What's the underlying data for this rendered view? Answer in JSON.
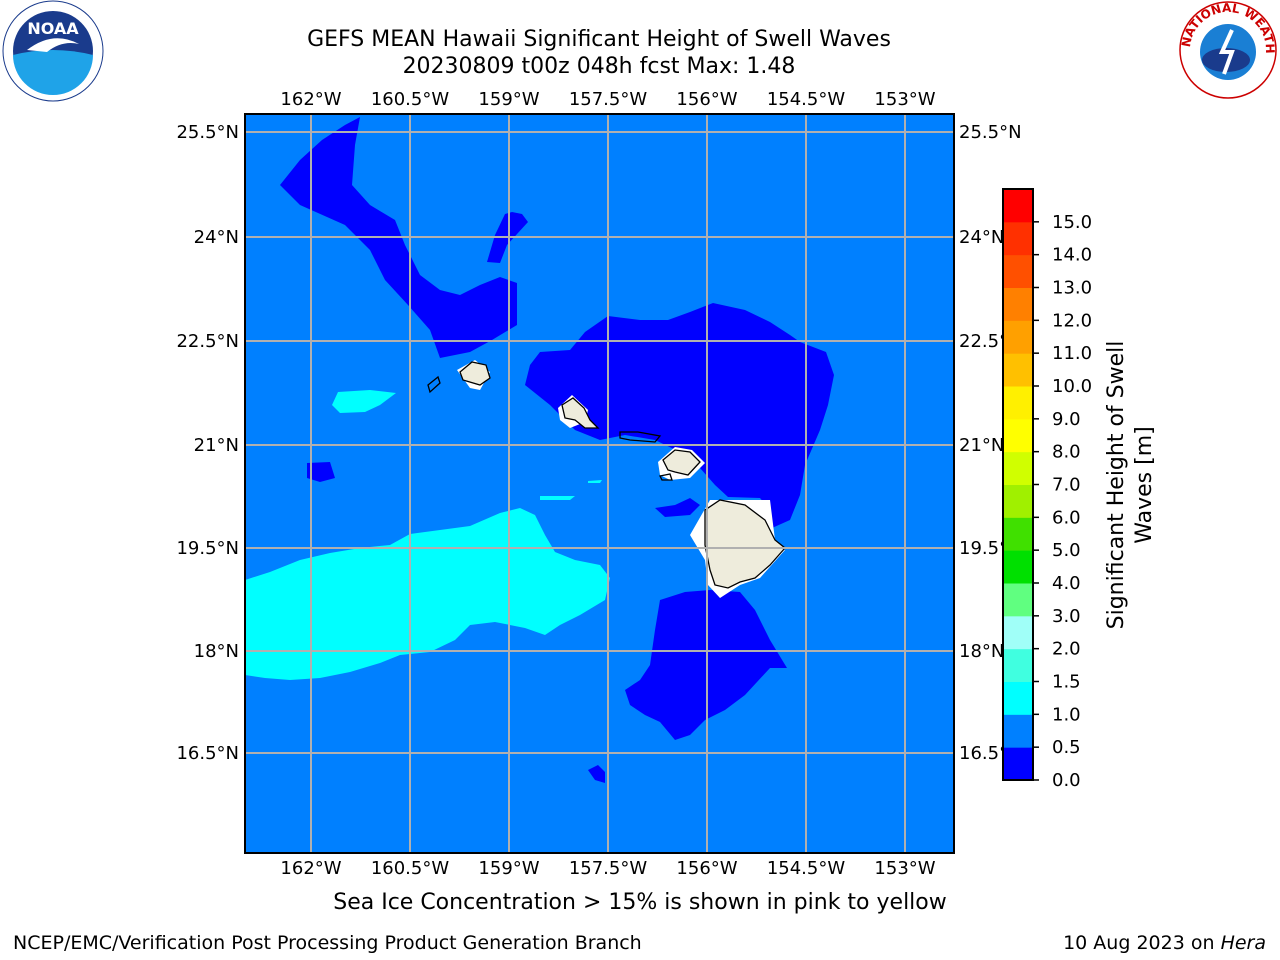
{
  "header": {
    "title_line1": "GEFS MEAN Hawaii Significant Height of Swell Waves",
    "title_line2": "20230809 t00z 048h fcst   Max: 1.48"
  },
  "map": {
    "lon_ticks": [
      "162°W",
      "160.5°W",
      "159°W",
      "157.5°W",
      "156°W",
      "154.5°W",
      "153°W"
    ],
    "lat_ticks": [
      "25.5°N",
      "24°N",
      "22.5°N",
      "21°N",
      "19.5°N",
      "18°N",
      "16.5°N"
    ],
    "ocean_color": "#0080ff",
    "land_color": "#eeecdc"
  },
  "colorbar": {
    "label_line1": "Significant Height of Swell",
    "label_line2": "Waves [m]",
    "tick_labels": [
      "0.0",
      "0.5",
      "1.0",
      "1.5",
      "2.0",
      "3.0",
      "4.0",
      "5.0",
      "6.0",
      "7.0",
      "8.0",
      "9.0",
      "10.0",
      "11.0",
      "12.0",
      "13.0",
      "14.0",
      "15.0"
    ],
    "colors": [
      "#0000ff",
      "#0080ff",
      "#00ffff",
      "#40ffe0",
      "#a0fff8",
      "#60ff80",
      "#00e000",
      "#40e000",
      "#a0f000",
      "#d0ff00",
      "#ffff00",
      "#fff000",
      "#ffc000",
      "#ffa000",
      "#ff8000",
      "#ff5000",
      "#ff3000",
      "#ff0000"
    ]
  },
  "logos": {
    "left": "NOAA",
    "right": "NATIONAL WEATHER SERVICE"
  },
  "note": "Sea Ice Concentration > 15% is shown in pink to yellow",
  "footer": {
    "left": "NCEP/EMC/Verification Post Processing Product Generation Branch",
    "right_prefix": "10 Aug 2023 on ",
    "right_host": "Hera"
  }
}
